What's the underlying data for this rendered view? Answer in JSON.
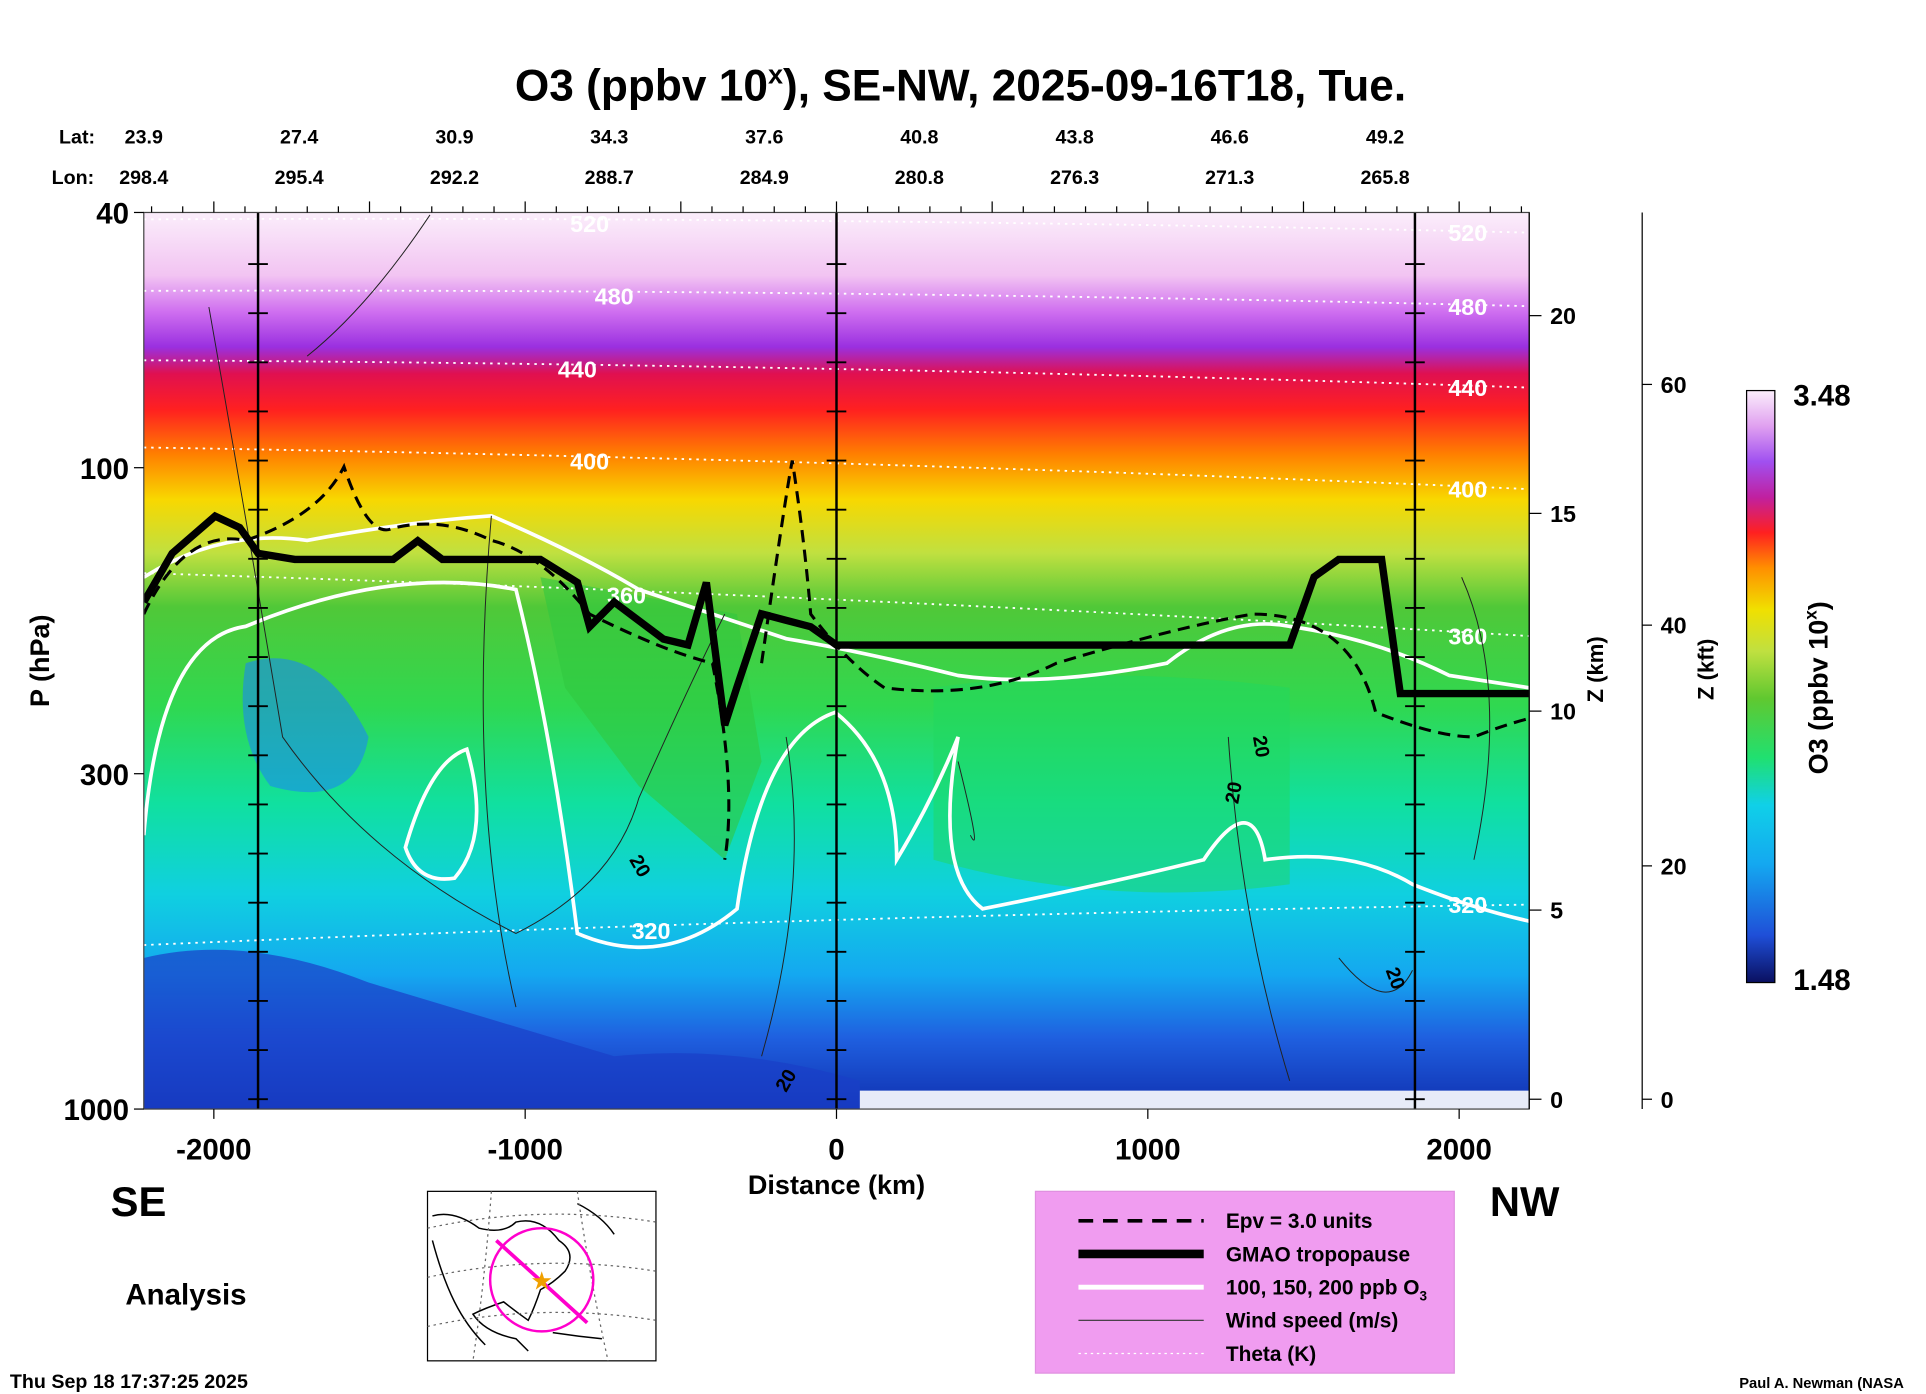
{
  "chart_data": {
    "type": "heatmap",
    "title": "O3 (ppbv 10",
    "title_sup": "x",
    "title_rest": "), SE-NW, 2025-09-16T18, Tue.",
    "lat_label": "Lat:",
    "lon_label": "Lon:",
    "lats": [
      "23.9",
      "27.4",
      "30.9",
      "34.3",
      "37.6",
      "40.8",
      "43.8",
      "46.6",
      "49.2"
    ],
    "lons": [
      "298.4",
      "295.4",
      "292.2",
      "288.7",
      "284.9",
      "280.8",
      "276.3",
      "271.3",
      "265.8"
    ],
    "latlon_distance_km": [
      -2225,
      -1726,
      -1227,
      -730,
      -232,
      266,
      765,
      1263,
      1762
    ],
    "xlabel": "Distance (km)",
    "xlim": [
      -2225,
      2225
    ],
    "xticks": [
      -2000,
      -1000,
      0,
      1000,
      2000
    ],
    "xtick_labels": [
      "-2000",
      "-1000",
      "0",
      "1000",
      "2000"
    ],
    "ylabel": "P (hPa)",
    "ylim": [
      1000,
      40
    ],
    "yscale": "log",
    "yticks": [
      40,
      100,
      300,
      1000
    ],
    "ytick_labels": [
      "40",
      "100",
      "300",
      "1000"
    ],
    "z_km_label": "Z (km)",
    "z_km_ticks": [
      "20",
      "15",
      "10",
      "5",
      "0"
    ],
    "z_kft_label": "Z (kft)",
    "z_kft_ticks": [
      "60",
      "40",
      "20",
      "0"
    ],
    "section_markers_km": [
      -1858,
      0,
      1858
    ],
    "colorbar": {
      "label": "O3 (ppbv 10",
      "label_sup": "x",
      "label_end": ")",
      "min": "1.48",
      "max": "3.48",
      "colors": [
        "#0a1060",
        "#163a8a",
        "#1f4fd8",
        "#1a7cf0",
        "#14a8f0",
        "#10d0e8",
        "#10e0b0",
        "#20e070",
        "#40d040",
        "#70c830",
        "#b8e040",
        "#f0e000",
        "#ffb000",
        "#ff7000",
        "#ff2020",
        "#e01050",
        "#b020d0",
        "#a050f0",
        "#d080f0",
        "#f0c0f0",
        "#fbeefb"
      ]
    },
    "theta_lines": [
      {
        "label": "520",
        "p_left": 41,
        "p_right": 43
      },
      {
        "label": "480",
        "p_left": 53,
        "p_right": 56
      },
      {
        "label": "440",
        "p_left": 68,
        "p_right": 75
      },
      {
        "label": "400",
        "p_left": 93,
        "p_right": 108
      },
      {
        "label": "360",
        "p_left": 146,
        "p_right": 183
      },
      {
        "label": "320",
        "p_left": 555,
        "p_right": 480
      }
    ],
    "tropopause": {
      "km": [
        -2225,
        -2134,
        -1996,
        -1917,
        -1858,
        -1740,
        -1424,
        -1345,
        -1266,
        -951,
        -832,
        -793,
        -714,
        -556,
        -477,
        -418,
        -359,
        -320,
        -241,
        -162,
        -83,
        0,
        1456,
        1534,
        1613,
        1751,
        1811,
        2225
      ],
      "hPa": [
        162,
        136,
        119,
        124,
        136,
        139,
        139,
        130,
        139,
        139,
        151,
        177,
        162,
        185,
        189,
        151,
        252,
        220,
        169,
        173,
        177,
        189,
        189,
        148,
        139,
        139,
        225,
        225
      ]
    },
    "wind_label": "20",
    "legend": {
      "position": "bottom-right",
      "items": [
        {
          "label": "Epv = 3.0 units",
          "style": "dashed"
        },
        {
          "label": "GMAO tropopause",
          "style": "thick"
        },
        {
          "label": "100, 150, 200 ppb O",
          "label_sub": "3",
          "style": "white"
        },
        {
          "label": "Wind speed (m/s)",
          "style": "thin"
        },
        {
          "label": "Theta (K)",
          "style": "dotted"
        }
      ]
    },
    "left_dir": "SE",
    "right_dir": "NW",
    "product": "Analysis",
    "timestamp": "Thu Sep 18 17:37:25 2025",
    "credit": "Paul A. Newman (NASA"
  }
}
